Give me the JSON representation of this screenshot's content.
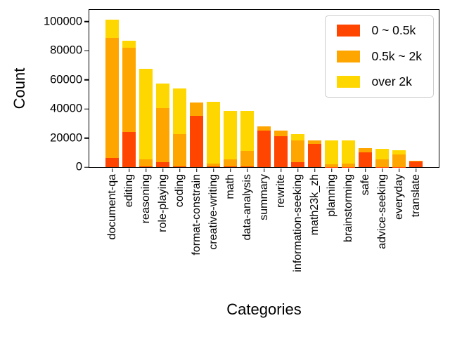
{
  "chart_data": {
    "type": "bar",
    "stacked": true,
    "title": "",
    "xlabel": "Categories",
    "ylabel": "Count",
    "ylim": [
      0,
      108000
    ],
    "yticks": [
      0,
      20000,
      40000,
      60000,
      80000,
      100000
    ],
    "grid": false,
    "legend_position": "upper right",
    "categories": [
      "document-qa",
      "editing",
      "reasoning",
      "role-playing",
      "coding",
      "format-constrain",
      "creative-writing",
      "math",
      "data-analysis",
      "summary",
      "rewrite",
      "information-seeking",
      "math23k_zh",
      "planning",
      "brainstorming",
      "safe",
      "advice-seeking",
      "everyday",
      "translate"
    ],
    "series": [
      {
        "name": "0 ~ 0.5k",
        "color": "#FF4500",
        "values": [
          6500,
          24000,
          500,
          3200,
          400,
          35300,
          400,
          600,
          700,
          25200,
          21000,
          3500,
          15800,
          200,
          200,
          10100,
          200,
          200,
          3800
        ]
      },
      {
        "name": "0.5k ~ 2k",
        "color": "#FFA500",
        "values": [
          82000,
          58000,
          4600,
          37500,
          22500,
          9200,
          2200,
          4700,
          10400,
          2600,
          4000,
          15000,
          2500,
          1900,
          2300,
          3100,
          5200,
          8300,
          600
        ]
      },
      {
        "name": "over 2k",
        "color": "#FFD700",
        "values": [
          13000,
          5000,
          62400,
          16800,
          31000,
          0,
          42200,
          33500,
          27400,
          0,
          0,
          4300,
          0,
          16100,
          15900,
          0,
          7200,
          3300,
          0
        ]
      }
    ]
  }
}
